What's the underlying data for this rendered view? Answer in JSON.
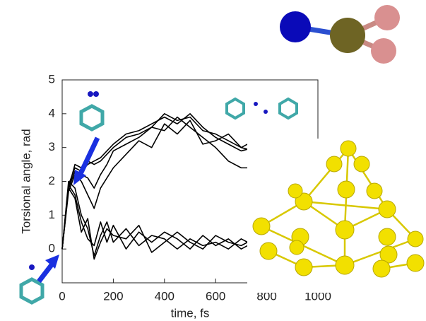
{
  "chart_data": {
    "type": "line",
    "xlabel": "time, fs",
    "ylabel": "Torsional angle, rad",
    "x": [
      0,
      25,
      50,
      75,
      100,
      125,
      150,
      175,
      200,
      250,
      300,
      350,
      400,
      450,
      500,
      550,
      600,
      650,
      700,
      750
    ],
    "series": [
      {
        "color": "#000000",
        "values": [
          0,
          1.8,
          2.5,
          2.4,
          2.6,
          2.5,
          2.6,
          2.8,
          3.0,
          3.3,
          3.4,
          3.6,
          4.0,
          3.8,
          3.9,
          3.5,
          3.4,
          3.2,
          3.0,
          2.9
        ]
      },
      {
        "color": "#000000",
        "values": [
          0,
          1.9,
          2.4,
          2.3,
          2.5,
          2.6,
          2.7,
          2.9,
          3.1,
          3.4,
          3.5,
          3.7,
          3.9,
          3.7,
          4.0,
          3.6,
          3.3,
          3.1,
          2.9,
          3.0
        ]
      },
      {
        "color": "#000000",
        "values": [
          0,
          1.8,
          2.3,
          2.2,
          2.1,
          1.8,
          2.2,
          2.5,
          2.9,
          3.1,
          3.3,
          3.6,
          3.5,
          3.9,
          3.6,
          3.3,
          3.0,
          2.6,
          2.4,
          2.4
        ]
      },
      {
        "color": "#000000",
        "values": [
          0,
          1.7,
          2.2,
          2.0,
          1.6,
          1.2,
          1.8,
          2.1,
          2.4,
          2.8,
          3.2,
          3.0,
          3.7,
          3.4,
          3.8,
          3.1,
          3.2,
          3.4,
          3.0,
          3.2
        ]
      },
      {
        "color": "#000000",
        "values": [
          0,
          2.0,
          1.8,
          1.0,
          0.6,
          -0.2,
          0.4,
          0.8,
          0.2,
          0.6,
          0.1,
          0.4,
          0.3,
          0.0,
          0.3,
          0.1,
          0.2,
          0.0,
          0.3,
          0.1
        ]
      },
      {
        "color": "#000000",
        "values": [
          0,
          1.9,
          1.6,
          0.8,
          0.3,
          0.1,
          0.8,
          0.2,
          0.7,
          0.0,
          0.5,
          0.2,
          0.5,
          0.3,
          0.0,
          0.4,
          0.1,
          0.3,
          0.0,
          0.2
        ]
      },
      {
        "color": "#000000",
        "values": [
          0,
          1.8,
          1.5,
          0.5,
          0.9,
          -0.3,
          0.2,
          0.6,
          0.4,
          0.3,
          0.7,
          -0.1,
          0.2,
          0.5,
          0.2,
          0.0,
          0.4,
          0.2,
          0.1,
          0.3
        ]
      }
    ],
    "xlim": [
      0,
      1000
    ],
    "xticks": [
      0,
      200,
      400,
      600,
      800,
      1000
    ],
    "ylim": [
      -1,
      5
    ],
    "yticks": [
      0,
      1,
      2,
      3,
      4,
      5
    ]
  }
}
